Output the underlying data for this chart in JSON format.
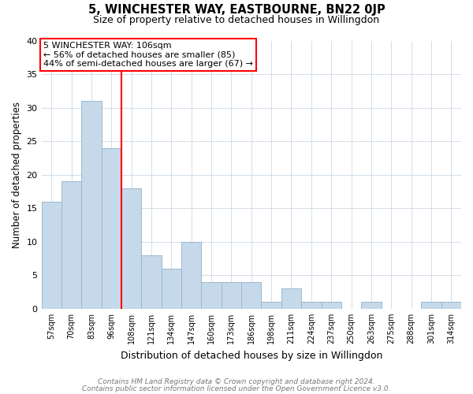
{
  "title": "5, WINCHESTER WAY, EASTBOURNE, BN22 0JP",
  "subtitle": "Size of property relative to detached houses in Willingdon",
  "xlabel": "Distribution of detached houses by size in Willingdon",
  "ylabel": "Number of detached properties",
  "categories": [
    "57sqm",
    "70sqm",
    "83sqm",
    "96sqm",
    "108sqm",
    "121sqm",
    "134sqm",
    "147sqm",
    "160sqm",
    "173sqm",
    "186sqm",
    "198sqm",
    "211sqm",
    "224sqm",
    "237sqm",
    "250sqm",
    "263sqm",
    "275sqm",
    "288sqm",
    "301sqm",
    "314sqm"
  ],
  "values": [
    16,
    19,
    31,
    24,
    18,
    8,
    6,
    10,
    4,
    4,
    4,
    1,
    3,
    1,
    1,
    0,
    1,
    0,
    0,
    1,
    1
  ],
  "bar_color": "#c6d9ea",
  "bar_edge_color": "#9ab8d0",
  "redline_index": 4,
  "annotation_line1": "5 WINCHESTER WAY: 106sqm",
  "annotation_line2": "← 56% of detached houses are smaller (85)",
  "annotation_line3": "44% of semi-detached houses are larger (67) →",
  "ylim": [
    0,
    40
  ],
  "yticks": [
    0,
    5,
    10,
    15,
    20,
    25,
    30,
    35,
    40
  ],
  "footnote1": "Contains HM Land Registry data © Crown copyright and database right 2024.",
  "footnote2": "Contains public sector information licensed under the Open Government Licence v3.0.",
  "bg_color": "#ffffff",
  "grid_color": "#ccd8e4"
}
